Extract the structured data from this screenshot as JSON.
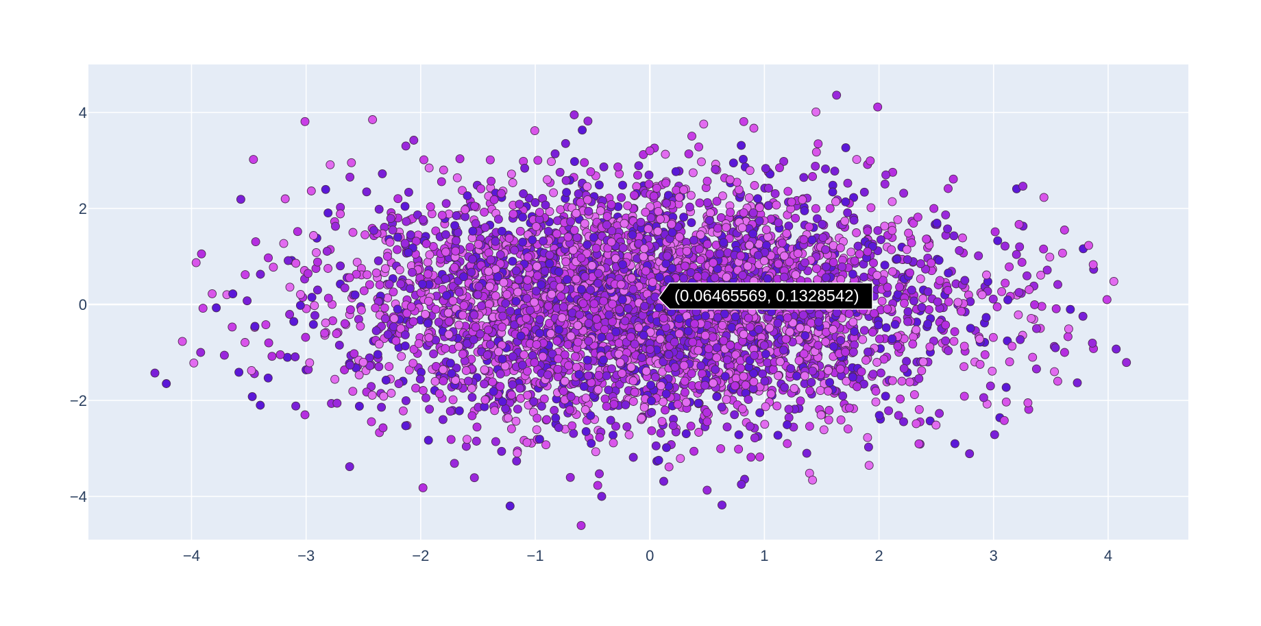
{
  "chart_data": {
    "type": "scatter",
    "title": "",
    "xlabel": "",
    "ylabel": "",
    "xlim": [
      -4.9,
      4.7
    ],
    "ylim": [
      -4.9,
      5.0
    ],
    "grid": true,
    "legend": "none",
    "x_ticks": [
      {
        "value": -4,
        "label": "−4"
      },
      {
        "value": -3,
        "label": "−3"
      },
      {
        "value": -2,
        "label": "−2"
      },
      {
        "value": -1,
        "label": "−1"
      },
      {
        "value": 0,
        "label": "0"
      },
      {
        "value": 1,
        "label": "1"
      },
      {
        "value": 2,
        "label": "2"
      },
      {
        "value": 3,
        "label": "3"
      },
      {
        "value": 4,
        "label": "4"
      }
    ],
    "y_ticks": [
      {
        "value": -4,
        "label": "−4"
      },
      {
        "value": -2,
        "label": "−2"
      },
      {
        "value": 0,
        "label": "0"
      },
      {
        "value": 2,
        "label": "2"
      },
      {
        "value": 4,
        "label": "4"
      }
    ],
    "colors": {
      "plot_background": "#e5ecf6",
      "gridline": "#ffffff",
      "marker_palette": [
        "#5b18d8",
        "#7a1fd8",
        "#9a28dc",
        "#b52ee0",
        "#c83ee6",
        "#d955ea",
        "#e26cf0"
      ],
      "marker_outline": "#4b2a4f",
      "tooltip_background": "#000000",
      "tooltip_border": "#ffffff"
    },
    "point_cloud": {
      "distribution": "bivariate normal, roughly elliptical",
      "x_mean": 0.0,
      "y_mean": 0.0,
      "x_std": 1.3,
      "y_std": 1.2,
      "approx_point_count": 4500
    },
    "series": [
      {
        "points": [
          [
            -4.32,
            -1.43
          ],
          [
            -4.22,
            -1.65
          ],
          [
            -3.98,
            -1.22
          ],
          [
            -3.92,
            -1.0
          ],
          [
            -3.96,
            0.87
          ],
          [
            -3.9,
            -0.08
          ],
          [
            -4.08,
            -0.77
          ],
          [
            -3.64,
            0.22
          ],
          [
            -3.46,
            3.02
          ],
          [
            -3.01,
            3.81
          ],
          [
            -2.42,
            3.85
          ],
          [
            -2.79,
            2.91
          ],
          [
            -3.57,
            2.19
          ],
          [
            -3.47,
            -1.92
          ],
          [
            -3.4,
            -2.1
          ],
          [
            -3.01,
            -2.3
          ],
          [
            -2.62,
            -3.38
          ],
          [
            -1.98,
            -3.82
          ],
          [
            -1.22,
            -4.2
          ],
          [
            -0.42,
            -4.0
          ],
          [
            0.63,
            -4.18
          ],
          [
            0.5,
            -3.87
          ],
          [
            1.42,
            -3.66
          ],
          [
            -0.54,
            3.82
          ],
          [
            -0.66,
            3.95
          ],
          [
            0.82,
            3.81
          ],
          [
            1.45,
            4.01
          ],
          [
            1.63,
            4.36
          ],
          [
            3.44,
            2.23
          ],
          [
            3.83,
            1.23
          ],
          [
            3.87,
            0.83
          ],
          [
            3.99,
            0.1
          ],
          [
            4.05,
            0.48
          ],
          [
            4.16,
            -1.21
          ],
          [
            4.07,
            -0.93
          ],
          [
            3.62,
            -1.0
          ],
          [
            3.56,
            -1.6
          ],
          [
            3.3,
            -2.05
          ],
          [
            2.79,
            -3.11
          ],
          [
            1.26,
            -1.75
          ],
          [
            -1.47,
            -0.03
          ],
          [
            0.16,
            0.52
          ],
          [
            1.9,
            1.1
          ],
          [
            -2.2,
            1.4
          ],
          [
            2.2,
            -1.6
          ],
          [
            -0.9,
            -2.4
          ],
          [
            0.7,
            2.6
          ],
          [
            -2.9,
            0.3
          ],
          [
            2.9,
            0.2
          ],
          [
            -1.8,
            2.8
          ],
          [
            1.2,
            -2.9
          ],
          [
            0.0,
            3.2
          ]
        ]
      }
    ],
    "hover_label": {
      "text": "(0.06465569, 0.1328542)",
      "x": 0.06465569,
      "y": 0.1328542
    }
  }
}
